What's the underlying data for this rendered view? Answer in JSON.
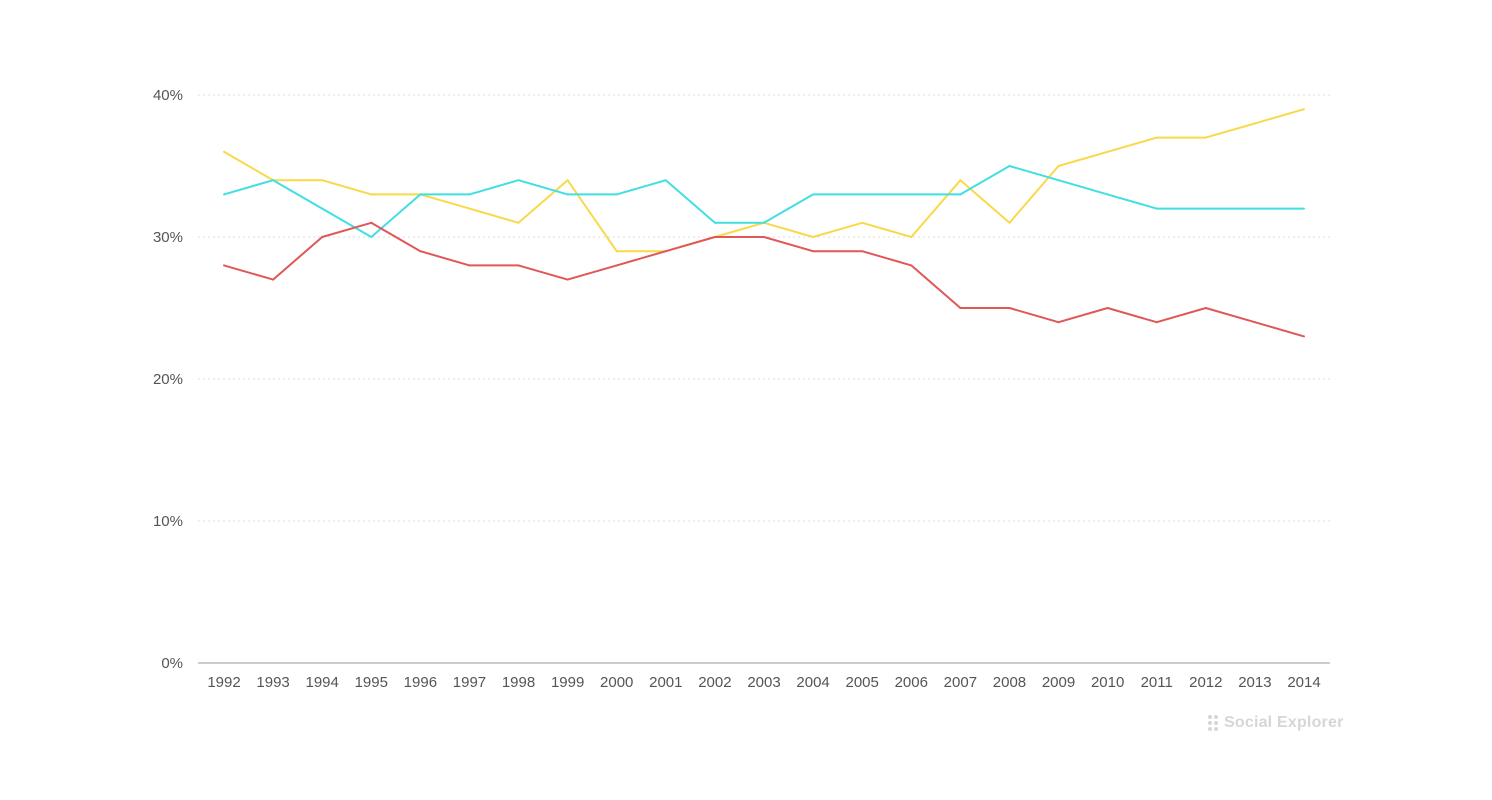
{
  "chart_data": {
    "type": "line",
    "x": [
      "1992",
      "1993",
      "1994",
      "1995",
      "1996",
      "1997",
      "1998",
      "1999",
      "2000",
      "2001",
      "2002",
      "2003",
      "2004",
      "2005",
      "2006",
      "2007",
      "2008",
      "2009",
      "2010",
      "2011",
      "2012",
      "2013",
      "2014"
    ],
    "series": [
      {
        "color": "#f9d849",
        "values": [
          36,
          34,
          34,
          33,
          33,
          32,
          31,
          34,
          29,
          29,
          30,
          31,
          30,
          31,
          30,
          34,
          31,
          35,
          36,
          37,
          37,
          38,
          39
        ]
      },
      {
        "color": "#3fdfe3",
        "values": [
          33,
          34,
          32,
          30,
          33,
          33,
          34,
          33,
          33,
          34,
          31,
          31,
          33,
          33,
          33,
          33,
          35,
          34,
          33,
          32,
          32,
          32,
          32
        ]
      },
      {
        "color": "#e05757",
        "values": [
          28,
          27,
          30,
          31,
          29,
          28,
          28,
          27,
          28,
          29,
          30,
          30,
          29,
          29,
          28,
          25,
          25,
          24,
          25,
          24,
          25,
          24,
          23
        ]
      }
    ],
    "y_ticks": [
      "0%",
      "10%",
      "20%",
      "30%",
      "40%"
    ],
    "y_tick_values": [
      0,
      10,
      20,
      30,
      40
    ],
    "ylim": [
      0,
      40
    ],
    "grid": true,
    "title": "",
    "xlabel": "",
    "ylabel": ""
  },
  "watermark": {
    "text": "Social Explorer"
  }
}
